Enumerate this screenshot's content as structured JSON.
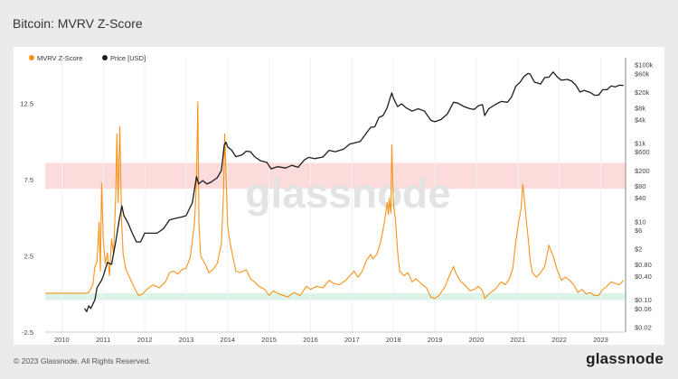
{
  "title": "Bitcoin: MVRV Z-Score",
  "footer": {
    "copyright": "© 2023 Glassnode. All Rights Reserved.",
    "brand": "glassnode"
  },
  "watermark": "glassnode",
  "colors": {
    "zscore": "#f7931a",
    "price": "#1e1e1e",
    "red_band": "#fbd5d5",
    "green_band": "#d5f2e3",
    "background": "#ebebeb"
  },
  "chart_data": {
    "type": "line",
    "legend": {
      "placement": "top-left",
      "entries": [
        "MVRV Z-Score",
        "Price [USD]"
      ]
    },
    "x_ticks": [
      "2010",
      "2011",
      "2012",
      "2013",
      "2014",
      "2015",
      "2016",
      "2017",
      "2018",
      "2019",
      "2020",
      "2021",
      "2022",
      "2023"
    ],
    "x_range": [
      2009.6,
      2023.6
    ],
    "y_left": {
      "ticks": [
        "12.5",
        "7.5",
        "2.5",
        "-2.5"
      ],
      "range": [
        -2.5,
        15.5
      ]
    },
    "y_right": {
      "scale": "log",
      "ticks": [
        "$100k",
        "$60k",
        "$20k",
        "$8k",
        "$4k",
        "$1k",
        "$600",
        "$200",
        "$80",
        "$40",
        "$10",
        "$6",
        "$2",
        "$0.80",
        "$0.40",
        "$0.10",
        "$0.06",
        "$0.02"
      ],
      "range": [
        0.015,
        150000
      ]
    },
    "bands": [
      {
        "name": "red",
        "from": 6.9,
        "to": 8.6
      },
      {
        "name": "green",
        "from": -0.4,
        "to": 0.05
      }
    ],
    "series": [
      {
        "name": "MVRV Z-Score",
        "axis": "left",
        "points": [
          [
            2009.6,
            0.05
          ],
          [
            2010.55,
            0.05
          ],
          [
            2010.65,
            0.1
          ],
          [
            2010.75,
            0.6
          ],
          [
            2010.8,
            1.8
          ],
          [
            2010.85,
            2.1
          ],
          [
            2010.9,
            4.7
          ],
          [
            2010.93,
            1.5
          ],
          [
            2010.96,
            7.3
          ],
          [
            2011.0,
            3.6
          ],
          [
            2011.05,
            2.0
          ],
          [
            2011.1,
            2.7
          ],
          [
            2011.15,
            1.2
          ],
          [
            2011.2,
            3.6
          ],
          [
            2011.25,
            2.6
          ],
          [
            2011.3,
            6.4
          ],
          [
            2011.33,
            10.5
          ],
          [
            2011.36,
            6.0
          ],
          [
            2011.4,
            11.0
          ],
          [
            2011.44,
            5.0
          ],
          [
            2011.48,
            2.6
          ],
          [
            2011.55,
            1.6
          ],
          [
            2011.65,
            1.0
          ],
          [
            2011.75,
            0.4
          ],
          [
            2011.85,
            -0.1
          ],
          [
            2011.95,
            0.0
          ],
          [
            2012.05,
            0.3
          ],
          [
            2012.2,
            0.6
          ],
          [
            2012.35,
            0.4
          ],
          [
            2012.5,
            0.8
          ],
          [
            2012.6,
            1.4
          ],
          [
            2012.7,
            1.5
          ],
          [
            2012.8,
            1.3
          ],
          [
            2012.9,
            1.6
          ],
          [
            2013.0,
            1.7
          ],
          [
            2013.1,
            2.4
          ],
          [
            2013.2,
            4.6
          ],
          [
            2013.25,
            7.5
          ],
          [
            2013.28,
            12.6
          ],
          [
            2013.31,
            4.5
          ],
          [
            2013.35,
            2.5
          ],
          [
            2013.45,
            2.0
          ],
          [
            2013.55,
            1.4
          ],
          [
            2013.65,
            1.6
          ],
          [
            2013.75,
            2.0
          ],
          [
            2013.85,
            3.3
          ],
          [
            2013.9,
            6.6
          ],
          [
            2013.93,
            10.5
          ],
          [
            2013.96,
            8.0
          ],
          [
            2014.0,
            4.5
          ],
          [
            2014.05,
            3.5
          ],
          [
            2014.1,
            2.8
          ],
          [
            2014.2,
            1.5
          ],
          [
            2014.3,
            1.4
          ],
          [
            2014.45,
            1.6
          ],
          [
            2014.55,
            1.0
          ],
          [
            2014.65,
            0.8
          ],
          [
            2014.75,
            0.5
          ],
          [
            2014.9,
            0.3
          ],
          [
            2015.0,
            -0.1
          ],
          [
            2015.1,
            0.2
          ],
          [
            2015.25,
            0.0
          ],
          [
            2015.45,
            -0.2
          ],
          [
            2015.6,
            0.1
          ],
          [
            2015.75,
            -0.1
          ],
          [
            2015.9,
            0.5
          ],
          [
            2016.0,
            0.3
          ],
          [
            2016.15,
            0.5
          ],
          [
            2016.3,
            0.4
          ],
          [
            2016.45,
            0.9
          ],
          [
            2016.55,
            0.7
          ],
          [
            2016.7,
            0.6
          ],
          [
            2016.85,
            0.9
          ],
          [
            2016.95,
            1.2
          ],
          [
            2017.05,
            1.5
          ],
          [
            2017.15,
            1.1
          ],
          [
            2017.25,
            1.5
          ],
          [
            2017.35,
            2.2
          ],
          [
            2017.45,
            2.6
          ],
          [
            2017.5,
            2.3
          ],
          [
            2017.6,
            2.6
          ],
          [
            2017.7,
            3.5
          ],
          [
            2017.75,
            4.2
          ],
          [
            2017.8,
            5.0
          ],
          [
            2017.85,
            6.0
          ],
          [
            2017.88,
            5.2
          ],
          [
            2017.9,
            6.3
          ],
          [
            2017.94,
            5.3
          ],
          [
            2017.96,
            9.8
          ],
          [
            2018.0,
            6.0
          ],
          [
            2018.05,
            4.8
          ],
          [
            2018.1,
            2.8
          ],
          [
            2018.15,
            1.5
          ],
          [
            2018.25,
            1.2
          ],
          [
            2018.35,
            1.4
          ],
          [
            2018.45,
            0.8
          ],
          [
            2018.55,
            1.0
          ],
          [
            2018.7,
            0.6
          ],
          [
            2018.8,
            0.4
          ],
          [
            2018.9,
            -0.2
          ],
          [
            2019.0,
            -0.3
          ],
          [
            2019.1,
            -0.1
          ],
          [
            2019.25,
            0.5
          ],
          [
            2019.35,
            1.2
          ],
          [
            2019.45,
            1.8
          ],
          [
            2019.5,
            1.4
          ],
          [
            2019.6,
            0.9
          ],
          [
            2019.75,
            0.5
          ],
          [
            2019.85,
            0.2
          ],
          [
            2019.95,
            0.3
          ],
          [
            2020.05,
            0.5
          ],
          [
            2020.15,
            0.2
          ],
          [
            2020.2,
            -0.3
          ],
          [
            2020.3,
            0.0
          ],
          [
            2020.45,
            0.3
          ],
          [
            2020.6,
            0.8
          ],
          [
            2020.7,
            0.6
          ],
          [
            2020.8,
            1.0
          ],
          [
            2020.88,
            1.7
          ],
          [
            2020.95,
            3.4
          ],
          [
            2021.02,
            4.7
          ],
          [
            2021.08,
            5.6
          ],
          [
            2021.12,
            7.2
          ],
          [
            2021.16,
            6.2
          ],
          [
            2021.2,
            5.0
          ],
          [
            2021.26,
            3.4
          ],
          [
            2021.3,
            2.2
          ],
          [
            2021.35,
            1.4
          ],
          [
            2021.45,
            1.1
          ],
          [
            2021.55,
            1.4
          ],
          [
            2021.65,
            1.8
          ],
          [
            2021.75,
            3.2
          ],
          [
            2021.85,
            2.5
          ],
          [
            2021.95,
            1.6
          ],
          [
            2022.05,
            0.9
          ],
          [
            2022.15,
            1.1
          ],
          [
            2022.25,
            0.9
          ],
          [
            2022.35,
            0.6
          ],
          [
            2022.45,
            0.1
          ],
          [
            2022.55,
            0.3
          ],
          [
            2022.65,
            0.0
          ],
          [
            2022.75,
            0.1
          ],
          [
            2022.85,
            -0.1
          ],
          [
            2022.95,
            -0.1
          ],
          [
            2023.05,
            0.3
          ],
          [
            2023.15,
            0.5
          ],
          [
            2023.25,
            0.8
          ],
          [
            2023.35,
            0.7
          ],
          [
            2023.45,
            0.6
          ],
          [
            2023.55,
            0.9
          ]
        ]
      },
      {
        "name": "Price [USD]",
        "axis": "right",
        "points": [
          [
            2010.55,
            0.06
          ],
          [
            2010.6,
            0.05
          ],
          [
            2010.65,
            0.07
          ],
          [
            2010.7,
            0.06
          ],
          [
            2010.8,
            0.1
          ],
          [
            2010.85,
            0.2
          ],
          [
            2010.9,
            0.25
          ],
          [
            2010.95,
            0.3
          ],
          [
            2011.0,
            0.4
          ],
          [
            2011.1,
            0.9
          ],
          [
            2011.2,
            0.8
          ],
          [
            2011.3,
            3.0
          ],
          [
            2011.38,
            10.0
          ],
          [
            2011.45,
            25.0
          ],
          [
            2011.5,
            14.0
          ],
          [
            2011.6,
            9.0
          ],
          [
            2011.7,
            5.0
          ],
          [
            2011.8,
            3.0
          ],
          [
            2011.9,
            3.0
          ],
          [
            2012.0,
            5.0
          ],
          [
            2012.1,
            5.0
          ],
          [
            2012.3,
            5.0
          ],
          [
            2012.45,
            6.5
          ],
          [
            2012.6,
            11.0
          ],
          [
            2012.75,
            12.0
          ],
          [
            2012.9,
            13.0
          ],
          [
            2013.0,
            14.0
          ],
          [
            2013.15,
            30.0
          ],
          [
            2013.25,
            140.0
          ],
          [
            2013.3,
            90.0
          ],
          [
            2013.4,
            110.0
          ],
          [
            2013.5,
            90.0
          ],
          [
            2013.6,
            100.0
          ],
          [
            2013.75,
            130.0
          ],
          [
            2013.85,
            200.0
          ],
          [
            2013.92,
            900.0
          ],
          [
            2013.96,
            1050.0
          ],
          [
            2014.0,
            800.0
          ],
          [
            2014.1,
            650.0
          ],
          [
            2014.2,
            450.0
          ],
          [
            2014.35,
            500.0
          ],
          [
            2014.45,
            620.0
          ],
          [
            2014.55,
            600.0
          ],
          [
            2014.65,
            450.0
          ],
          [
            2014.8,
            350.0
          ],
          [
            2014.95,
            320.0
          ],
          [
            2015.05,
            220.0
          ],
          [
            2015.2,
            250.0
          ],
          [
            2015.4,
            230.0
          ],
          [
            2015.55,
            270.0
          ],
          [
            2015.7,
            240.0
          ],
          [
            2015.85,
            370.0
          ],
          [
            2015.95,
            430.0
          ],
          [
            2016.1,
            400.0
          ],
          [
            2016.3,
            440.0
          ],
          [
            2016.45,
            650.0
          ],
          [
            2016.6,
            600.0
          ],
          [
            2016.8,
            700.0
          ],
          [
            2016.95,
            950.0
          ],
          [
            2017.05,
            1000.0
          ],
          [
            2017.2,
            1100.0
          ],
          [
            2017.35,
            1800.0
          ],
          [
            2017.45,
            2500.0
          ],
          [
            2017.55,
            2600.0
          ],
          [
            2017.65,
            4500.0
          ],
          [
            2017.75,
            5000.0
          ],
          [
            2017.85,
            8000.0
          ],
          [
            2017.9,
            12000.0
          ],
          [
            2017.96,
            19000.0
          ],
          [
            2018.0,
            14000.0
          ],
          [
            2018.1,
            8500.0
          ],
          [
            2018.2,
            10000.0
          ],
          [
            2018.3,
            8000.0
          ],
          [
            2018.45,
            6500.0
          ],
          [
            2018.6,
            7500.0
          ],
          [
            2018.75,
            6500.0
          ],
          [
            2018.9,
            3800.0
          ],
          [
            2019.0,
            3500.0
          ],
          [
            2019.15,
            4000.0
          ],
          [
            2019.3,
            5500.0
          ],
          [
            2019.45,
            11000.0
          ],
          [
            2019.55,
            10500.0
          ],
          [
            2019.7,
            8500.0
          ],
          [
            2019.85,
            7500.0
          ],
          [
            2019.95,
            7200.0
          ],
          [
            2020.05,
            9000.0
          ],
          [
            2020.15,
            9500.0
          ],
          [
            2020.2,
            5000.0
          ],
          [
            2020.3,
            7500.0
          ],
          [
            2020.45,
            9500.0
          ],
          [
            2020.6,
            11500.0
          ],
          [
            2020.75,
            11000.0
          ],
          [
            2020.85,
            15000.0
          ],
          [
            2020.95,
            28000.0
          ],
          [
            2021.05,
            35000.0
          ],
          [
            2021.15,
            50000.0
          ],
          [
            2021.25,
            60000.0
          ],
          [
            2021.3,
            57000.0
          ],
          [
            2021.4,
            36000.0
          ],
          [
            2021.55,
            32000.0
          ],
          [
            2021.65,
            47000.0
          ],
          [
            2021.75,
            48000.0
          ],
          [
            2021.85,
            65000.0
          ],
          [
            2021.95,
            49000.0
          ],
          [
            2022.05,
            40000.0
          ],
          [
            2022.2,
            42000.0
          ],
          [
            2022.3,
            38000.0
          ],
          [
            2022.4,
            30000.0
          ],
          [
            2022.5,
            20000.0
          ],
          [
            2022.6,
            22000.0
          ],
          [
            2022.75,
            19500.0
          ],
          [
            2022.85,
            16500.0
          ],
          [
            2022.95,
            16800.0
          ],
          [
            2023.05,
            23000.0
          ],
          [
            2023.15,
            23000.0
          ],
          [
            2023.25,
            28500.0
          ],
          [
            2023.35,
            27000.0
          ],
          [
            2023.45,
            30000.0
          ],
          [
            2023.55,
            29500.0
          ]
        ]
      }
    ]
  }
}
